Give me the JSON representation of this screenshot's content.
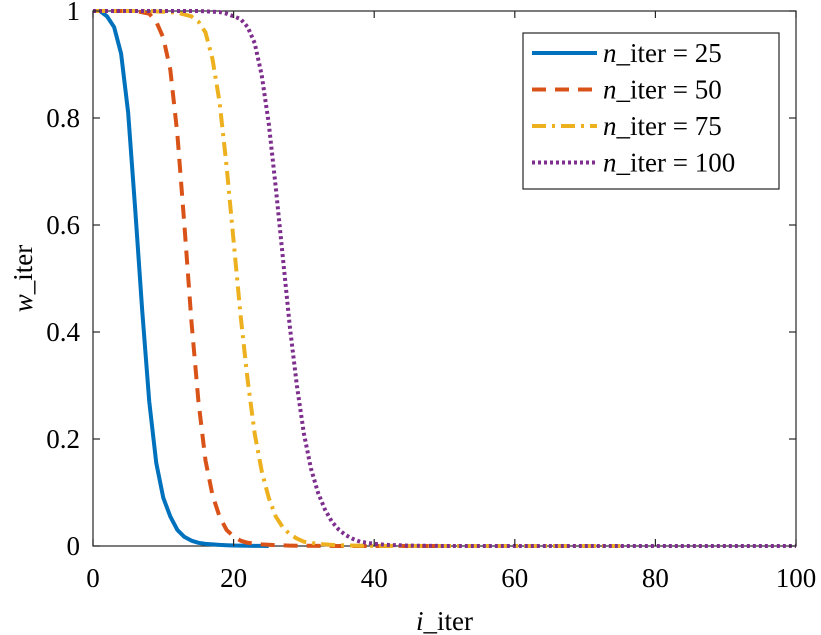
{
  "chart_data": {
    "type": "line",
    "xlabel_parts": [
      "i",
      "_iter"
    ],
    "ylabel_parts": [
      "w",
      "_iter"
    ],
    "xlim": [
      0,
      100
    ],
    "ylim": [
      0,
      1
    ],
    "xticks": [
      0,
      20,
      40,
      60,
      80,
      100
    ],
    "xtick_labels": [
      "0",
      "20",
      "40",
      "60",
      "80",
      "100"
    ],
    "yticks": [
      0,
      0.2,
      0.4,
      0.6,
      0.8,
      1
    ],
    "ytick_labels": [
      "0",
      "0.2",
      "0.4",
      "0.6",
      "0.8",
      "1"
    ],
    "grid": false,
    "legend_position": "top-right",
    "series": [
      {
        "legend_var": "n",
        "legend_rest": "_iter = 25",
        "color": "#0072BD",
        "dash": "solid",
        "x": [
          0,
          1,
          2,
          3,
          4,
          5,
          6,
          7,
          8,
          9,
          10,
          11,
          12,
          13,
          14,
          15,
          16,
          17,
          18,
          19,
          20,
          21,
          22,
          23,
          24,
          25
        ],
        "y": [
          1,
          1,
          0.99,
          0.97,
          0.92,
          0.81,
          0.63,
          0.44,
          0.27,
          0.155,
          0.09,
          0.055,
          0.03,
          0.017,
          0.01,
          0.006,
          0.004,
          0.003,
          0.002,
          0.0015,
          0.001,
          0.0008,
          0.0005,
          0.0003,
          0.0002,
          0
        ]
      },
      {
        "legend_var": "n",
        "legend_rest": "_iter = 50",
        "color": "#D95319",
        "dash": "dashed",
        "x": [
          0,
          2,
          4,
          6,
          8,
          9,
          10,
          11,
          12,
          13,
          14,
          15,
          16,
          17,
          18,
          19,
          20,
          21,
          22,
          24,
          26,
          28,
          30,
          35,
          40,
          45,
          50
        ],
        "y": [
          1,
          1,
          1,
          1,
          0.995,
          0.98,
          0.95,
          0.89,
          0.77,
          0.6,
          0.42,
          0.27,
          0.16,
          0.095,
          0.055,
          0.03,
          0.018,
          0.01,
          0.006,
          0.003,
          0.0015,
          0.0008,
          0.0004,
          0.0001,
          0,
          0,
          0
        ]
      },
      {
        "legend_var": "n",
        "legend_rest": "_iter = 75",
        "color": "#EDB120",
        "dash": "dashdot",
        "x": [
          0,
          4,
          8,
          12,
          14,
          15,
          16,
          17,
          18,
          19,
          20,
          21,
          22,
          23,
          24,
          25,
          26,
          27,
          28,
          29,
          30,
          32,
          34,
          36,
          40,
          50,
          60,
          75
        ],
        "y": [
          1,
          1,
          1,
          0.997,
          0.99,
          0.98,
          0.96,
          0.91,
          0.83,
          0.71,
          0.57,
          0.43,
          0.31,
          0.21,
          0.14,
          0.09,
          0.055,
          0.035,
          0.022,
          0.014,
          0.008,
          0.004,
          0.002,
          0.001,
          0.0003,
          0,
          0,
          0
        ]
      },
      {
        "legend_var": "n",
        "legend_rest": "_iter = 100",
        "color": "#7E2F8E",
        "dash": "dotted",
        "x": [
          0,
          5,
          10,
          15,
          18,
          19,
          20,
          21,
          22,
          23,
          24,
          25,
          26,
          27,
          28,
          29,
          30,
          31,
          32,
          33,
          34,
          35,
          36,
          37,
          38,
          40,
          42,
          45,
          50,
          60,
          70,
          80,
          90,
          100
        ],
        "y": [
          1,
          1,
          1,
          1,
          0.998,
          0.995,
          0.99,
          0.985,
          0.97,
          0.94,
          0.88,
          0.79,
          0.67,
          0.54,
          0.41,
          0.3,
          0.21,
          0.145,
          0.1,
          0.068,
          0.045,
          0.03,
          0.02,
          0.013,
          0.008,
          0.004,
          0.002,
          0.0007,
          0,
          0,
          0,
          0,
          0,
          0
        ]
      }
    ]
  }
}
